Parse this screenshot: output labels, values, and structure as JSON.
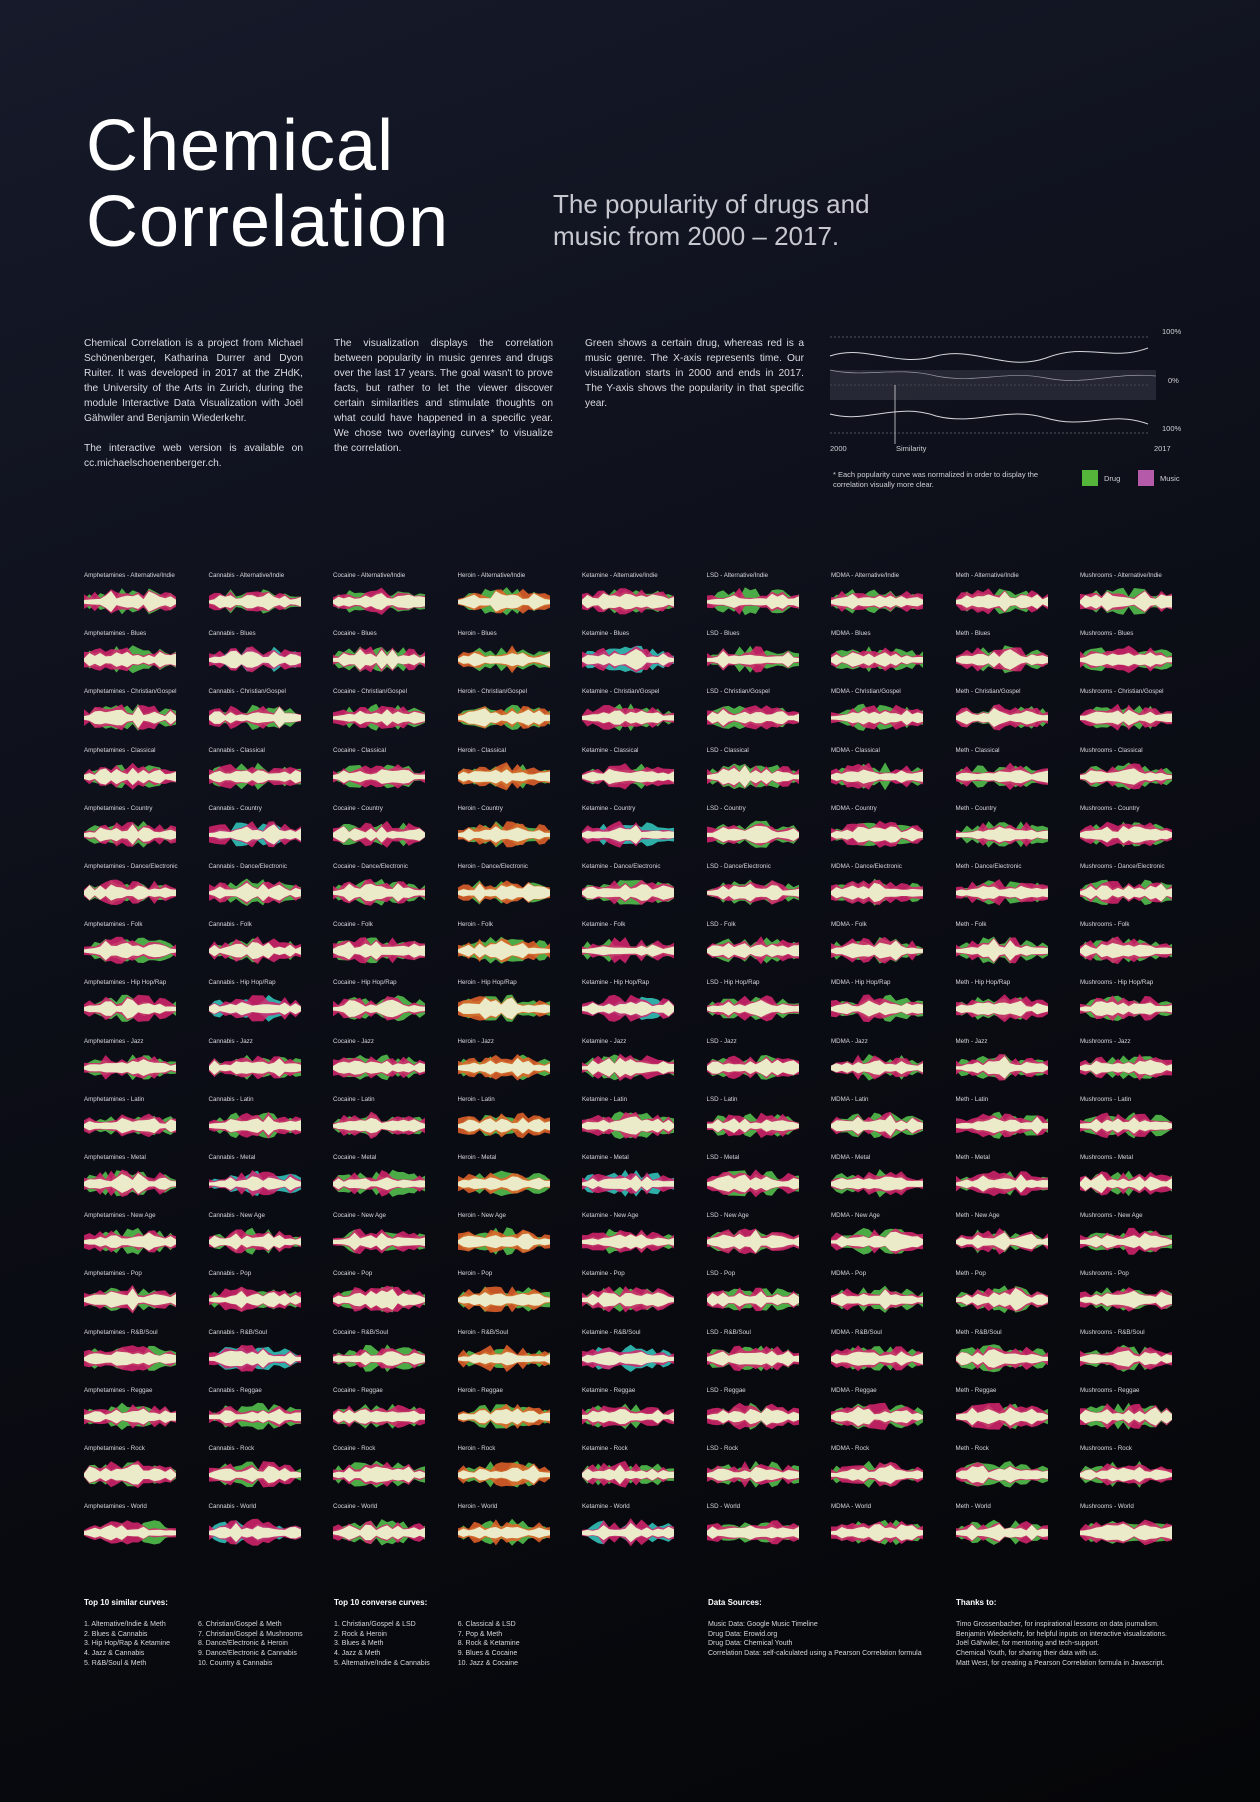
{
  "header": {
    "title_line1": "Chemical",
    "title_line2": "Correlation",
    "subtitle_line1": "The popularity of drugs and",
    "subtitle_line2": "music from 2000 – 2017."
  },
  "intro": {
    "p1": "Chemical Correlation is a project from Michael Schönenberger, Katharina Durrer and Dyon Ruiter. It was developed in 2017 at the ZHdK, the University of the Arts in Zurich, during the module Interactive Data Visualization with Joël Gähwiler and Benjamin Wiederkehr.",
    "p2": "The interactive web version is available on cc.michaelschoenenberger.ch.",
    "p3": "The visualization displays the correlation between popularity in music genres and drugs over the last 17 years. The goal wasn't to prove facts, but rather to let the viewer discover certain similarities and stimulate thoughts on what could have happened in a specific year. We chose two overlaying curves* to visualize the correlation.",
    "p4": "Green shows a certain drug, whereas red is a music genre. The X-axis represents time. Our visualization starts in 2000 and ends in 2017. The Y-axis shows the popularity in that specific year."
  },
  "legend": {
    "top_label": "100%",
    "mid_label": "0%",
    "bottom_label": "100%",
    "start_year": "2000",
    "end_year": "2017",
    "similarity_label": "Similarity",
    "footnote": "* Each popularity curve was normalized in order to display the correlation visually more clear.",
    "drug_label": "Drug",
    "music_label": "Music",
    "drug_color": "#55b43a",
    "music_color": "#b45aa8"
  },
  "grid": {
    "drugs": [
      "Amphetamines",
      "Cannabis",
      "Cocaine",
      "Heroin",
      "Ketamine",
      "LSD",
      "MDMA",
      "Meth",
      "Mushrooms"
    ],
    "genres": [
      "Alternative/Indie",
      "Blues",
      "Christian/Gospel",
      "Classical",
      "Country",
      "Dance/Electronic",
      "Folk",
      "Hip Hop/Rap",
      "Jazz",
      "Latin",
      "Metal",
      "New Age",
      "Pop",
      "R&B/Soul",
      "Reggae",
      "Rock",
      "World"
    ],
    "colors": {
      "similar": "#ecebc9",
      "drug": "#4fb54a",
      "music": "#d8246e",
      "drug_alt": "#2fb8b0",
      "music_alt": "#e8632a"
    }
  },
  "footer": {
    "similar_title": "Top 10 similar curves:",
    "similar": [
      "1. Alternative/Indie & Meth",
      "2. Blues & Cannabis",
      "3. Hip Hop/Rap & Ketamine",
      "4. Jazz & Cannabis",
      "5. R&B/Soul & Meth",
      "6. Christian/Gospel & Meth",
      "7. Christian/Gospel & Mushrooms",
      "8. Dance/Electronic & Heroin",
      "9. Dance/Electronic & Cannabis",
      "10. Country & Cannabis"
    ],
    "converse_title": "Top 10 converse curves:",
    "converse": [
      "1. Christian/Gospel & LSD",
      "2. Rock & Heroin",
      "3. Blues & Meth",
      "4. Jazz & Meth",
      "5. Alternative/Indie & Cannabis",
      "6. Classical & LSD",
      "7. Pop & Meth",
      "8. Rock & Ketamine",
      "9. Blues & Cocaine",
      "10. Jazz & Cocaine"
    ],
    "sources_title": "Data Sources:",
    "sources": [
      "Music Data: Google Music Timeline",
      "Drug Data: Erowid.org",
      "Drug Data: Chemical Youth",
      "Correlation Data: self-calculated using a Pearson Correlation formula"
    ],
    "thanks_title": "Thanks to:",
    "thanks": [
      "Timo Grossenbacher, for inspirational lessons on data journalism.",
      "Benjamin Wiederkehr, for helpful inputs on interactive visualizations.",
      "Joël Gähwiler, for mentoring and tech-support.",
      "Chemical Youth, for sharing their data with us.",
      "Matt West, for creating a Pearson Correlation formula in Javascript."
    ]
  }
}
